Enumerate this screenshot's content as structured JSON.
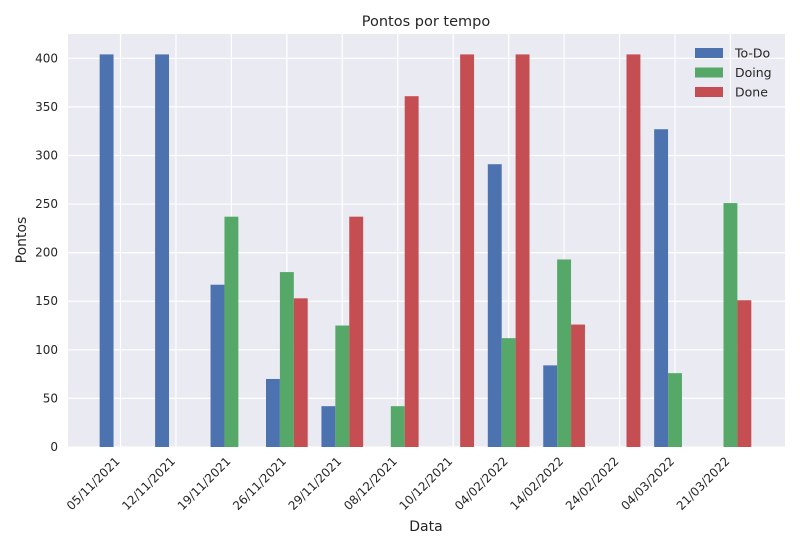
{
  "chart_data": {
    "type": "bar",
    "title": "Pontos por tempo",
    "xlabel": "Data",
    "ylabel": "Pontos",
    "ylim": [
      0,
      425
    ],
    "yticks": [
      0,
      50,
      100,
      150,
      200,
      250,
      300,
      350,
      400
    ],
    "grid": true,
    "legend_position": "top-right",
    "categories": [
      "05/11/2021",
      "12/11/2021",
      "19/11/2021",
      "26/11/2021",
      "29/11/2021",
      "08/12/2021",
      "10/12/2021",
      "04/02/2022",
      "14/02/2022",
      "24/02/2022",
      "04/03/2022",
      "21/03/2022"
    ],
    "series": [
      {
        "name": "To-Do",
        "color": "#4c72b0",
        "values": [
          404,
          404,
          167,
          70,
          42,
          0,
          0,
          291,
          84,
          0,
          327,
          0
        ]
      },
      {
        "name": "Doing",
        "color": "#55a868",
        "values": [
          0,
          0,
          237,
          180,
          125,
          42,
          0,
          112,
          193,
          0,
          76,
          251
        ]
      },
      {
        "name": "Done",
        "color": "#c44e52",
        "values": [
          0,
          0,
          0,
          153,
          237,
          361,
          404,
          404,
          126,
          404,
          0,
          151
        ]
      }
    ]
  }
}
